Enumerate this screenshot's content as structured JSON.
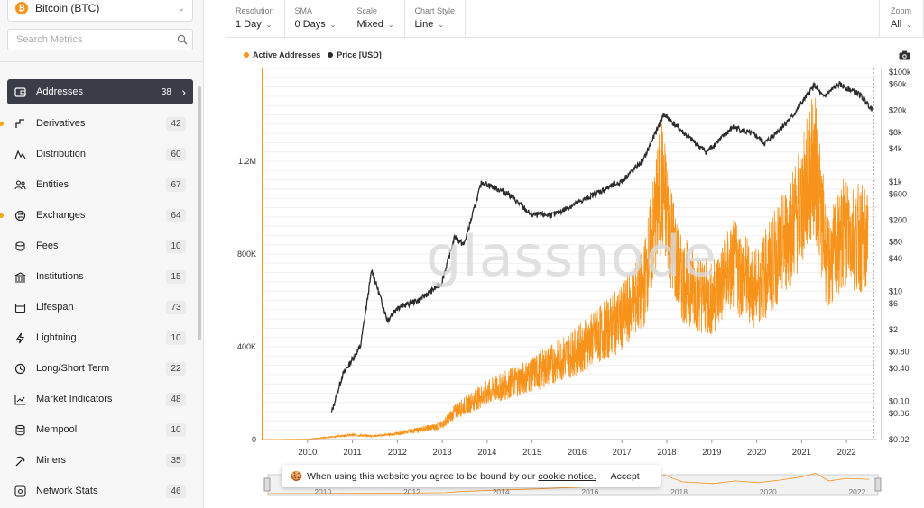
{
  "sidebar": {
    "asset": {
      "icon": "bitcoin-icon",
      "label": "Bitcoin (BTC)"
    },
    "search": {
      "placeholder": "Search Metrics",
      "value": ""
    },
    "items": [
      {
        "label": "Addresses",
        "count": "38",
        "icon": "wallet-icon",
        "active": true,
        "dot": false
      },
      {
        "label": "Derivatives",
        "count": "42",
        "icon": "derivatives-icon",
        "active": false,
        "dot": true
      },
      {
        "label": "Distribution",
        "count": "60",
        "icon": "distribution-icon",
        "active": false,
        "dot": false
      },
      {
        "label": "Entities",
        "count": "67",
        "icon": "users-icon",
        "active": false,
        "dot": false
      },
      {
        "label": "Exchanges",
        "count": "64",
        "icon": "exchange-icon",
        "active": false,
        "dot": true
      },
      {
        "label": "Fees",
        "count": "10",
        "icon": "coins-icon",
        "active": false,
        "dot": false
      },
      {
        "label": "Institutions",
        "count": "15",
        "icon": "bank-icon",
        "active": false,
        "dot": false
      },
      {
        "label": "Lifespan",
        "count": "73",
        "icon": "calendar-icon",
        "active": false,
        "dot": false
      },
      {
        "label": "Lightning",
        "count": "10",
        "icon": "lightning-icon",
        "active": false,
        "dot": false
      },
      {
        "label": "Long/Short Term",
        "count": "22",
        "icon": "clock-icon",
        "active": false,
        "dot": false
      },
      {
        "label": "Market Indicators",
        "count": "48",
        "icon": "chart-line-icon",
        "active": false,
        "dot": false
      },
      {
        "label": "Mempool",
        "count": "10",
        "icon": "database-icon",
        "active": false,
        "dot": false
      },
      {
        "label": "Miners",
        "count": "35",
        "icon": "pickaxe-icon",
        "active": false,
        "dot": false
      },
      {
        "label": "Network Stats",
        "count": "46",
        "icon": "network-icon",
        "active": false,
        "dot": false
      }
    ]
  },
  "toolbar": {
    "resolution": {
      "label": "Resolution",
      "value": "1 Day"
    },
    "sma": {
      "label": "SMA",
      "value": "0 Days"
    },
    "scale": {
      "label": "Scale",
      "value": "Mixed"
    },
    "chart_style": {
      "label": "Chart Style",
      "value": "Line"
    },
    "zoom": {
      "label": "Zoom",
      "value": "All"
    }
  },
  "legend": {
    "active_addresses": "Active Addresses",
    "price": "Price [USD]",
    "colors": {
      "active_addresses": "#f7931a",
      "price": "#2b2b2b"
    }
  },
  "watermark": "glassnode",
  "cookie": {
    "icon": "cookie-icon",
    "text": "When using this website you agree to be bound by our",
    "link": "cookie notice.",
    "accept": "Accept"
  },
  "chart_data": {
    "type": "line",
    "title": "",
    "x_ticks": [
      "2010",
      "2011",
      "2012",
      "2013",
      "2014",
      "2015",
      "2016",
      "2017",
      "2018",
      "2019",
      "2020",
      "2021",
      "2022"
    ],
    "left_axis": {
      "scale": "linear",
      "ticks": [
        "0",
        "400K",
        "800K",
        "1.2M"
      ],
      "ylim": [
        0,
        1600000
      ]
    },
    "right_axis": {
      "scale": "log",
      "ticks": [
        "$100k",
        "$60k",
        "$20k",
        "$8k",
        "$4k",
        "$1k",
        "$600",
        "$200",
        "$80",
        "$40",
        "$10",
        "$6",
        "$2",
        "$0.80",
        "$0.40",
        "$0.10",
        "$0.06",
        "$0.02"
      ]
    },
    "grid": true,
    "series": [
      {
        "name": "Active Addresses",
        "axis": "left",
        "color": "#f7931a",
        "x": [
          2009.0,
          2010.0,
          2011.0,
          2011.5,
          2012.0,
          2013.0,
          2013.3,
          2014.0,
          2015.0,
          2016.0,
          2017.0,
          2017.5,
          2017.9,
          2018.3,
          2019.0,
          2019.5,
          2020.0,
          2020.5,
          2021.0,
          2021.3,
          2021.6,
          2022.0,
          2022.5
        ],
        "y": [
          0,
          1000,
          20000,
          15000,
          25000,
          60000,
          120000,
          200000,
          280000,
          380000,
          520000,
          650000,
          1100000,
          700000,
          600000,
          750000,
          650000,
          800000,
          1000000,
          1200000,
          750000,
          900000,
          850000
        ]
      },
      {
        "name": "Price [USD]",
        "axis": "right",
        "color": "#2b2b2b",
        "x": [
          2010.55,
          2010.8,
          2011.2,
          2011.45,
          2011.8,
          2012.0,
          2012.5,
          2013.0,
          2013.3,
          2013.5,
          2013.9,
          2014.5,
          2015.0,
          2015.5,
          2016.0,
          2016.5,
          2017.0,
          2017.5,
          2017.95,
          2018.5,
          2018.9,
          2019.5,
          2020.0,
          2020.2,
          2020.8,
          2021.3,
          2021.5,
          2021.85,
          2022.3,
          2022.6
        ],
        "y": [
          0.06,
          0.3,
          1,
          25,
          3,
          5,
          7,
          14,
          100,
          70,
          1000,
          600,
          250,
          250,
          400,
          650,
          1000,
          2500,
          17000,
          6500,
          3500,
          10000,
          7000,
          5000,
          15000,
          58000,
          35000,
          60000,
          40000,
          21000
        ]
      }
    ]
  }
}
